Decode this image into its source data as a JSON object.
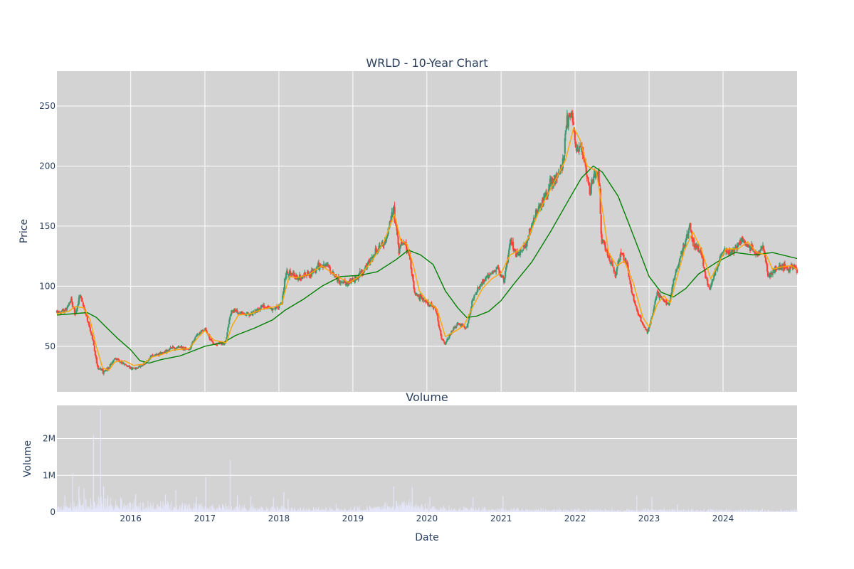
{
  "chart_data": [
    {
      "type": "candlestick",
      "title": "WRLD - 10-Year Chart",
      "ylabel": "Price",
      "ylim": [
        12,
        279
      ],
      "yticks": [
        50,
        100,
        150,
        200,
        250
      ],
      "grid": true,
      "colors": {
        "up": "#3d9970",
        "down": "#ff4136",
        "ma_short": "#ffa500",
        "ma_long": "#008000",
        "plot_bg": "#d3d3d3",
        "grid": "#ffffff"
      },
      "price_path": [
        [
          "2015-01-02",
          78
        ],
        [
          "2015-02-10",
          80
        ],
        [
          "2015-03-15",
          88
        ],
        [
          "2015-04-01",
          76
        ],
        [
          "2015-04-25",
          93
        ],
        [
          "2015-05-20",
          80
        ],
        [
          "2015-06-10",
          66
        ],
        [
          "2015-07-01",
          52
        ],
        [
          "2015-07-20",
          33
        ],
        [
          "2015-08-20",
          29
        ],
        [
          "2015-09-15",
          32
        ],
        [
          "2015-10-15",
          40
        ],
        [
          "2015-11-20",
          36
        ],
        [
          "2016-01-15",
          31
        ],
        [
          "2016-03-01",
          34
        ],
        [
          "2016-04-15",
          42
        ],
        [
          "2016-06-01",
          44
        ],
        [
          "2016-07-15",
          48
        ],
        [
          "2016-09-01",
          49
        ],
        [
          "2016-10-15",
          47
        ],
        [
          "2016-11-15",
          58
        ],
        [
          "2017-01-01",
          64
        ],
        [
          "2017-02-10",
          52
        ],
        [
          "2017-04-01",
          52
        ],
        [
          "2017-04-15",
          55
        ],
        [
          "2017-05-10",
          80
        ],
        [
          "2017-06-15",
          78
        ],
        [
          "2017-08-15",
          76
        ],
        [
          "2017-10-15",
          83
        ],
        [
          "2017-12-01",
          80
        ],
        [
          "2018-01-15",
          86
        ],
        [
          "2018-02-05",
          112
        ],
        [
          "2018-04-01",
          107
        ],
        [
          "2018-06-01",
          110
        ],
        [
          "2018-07-15",
          117
        ],
        [
          "2018-09-01",
          116
        ],
        [
          "2018-10-15",
          105
        ],
        [
          "2018-12-01",
          102
        ],
        [
          "2019-01-15",
          106
        ],
        [
          "2019-03-01",
          114
        ],
        [
          "2019-05-01",
          130
        ],
        [
          "2019-06-15",
          140
        ],
        [
          "2019-07-20",
          165
        ],
        [
          "2019-08-15",
          130
        ],
        [
          "2019-09-15",
          136
        ],
        [
          "2019-10-10",
          123
        ],
        [
          "2019-11-01",
          95
        ],
        [
          "2019-12-15",
          88
        ],
        [
          "2020-02-10",
          82
        ],
        [
          "2020-03-15",
          56
        ],
        [
          "2020-04-01",
          53
        ],
        [
          "2020-05-01",
          62
        ],
        [
          "2020-06-01",
          70
        ],
        [
          "2020-07-15",
          65
        ],
        [
          "2020-08-15",
          90
        ],
        [
          "2020-10-01",
          104
        ],
        [
          "2020-11-15",
          110
        ],
        [
          "2020-12-15",
          115
        ],
        [
          "2021-01-15",
          104
        ],
        [
          "2021-02-15",
          138
        ],
        [
          "2021-03-15",
          128
        ],
        [
          "2021-05-01",
          132
        ],
        [
          "2021-06-15",
          158
        ],
        [
          "2021-08-01",
          170
        ],
        [
          "2021-09-01",
          187
        ],
        [
          "2021-10-01",
          190
        ],
        [
          "2021-11-01",
          202
        ],
        [
          "2021-11-20",
          235
        ],
        [
          "2021-12-15",
          248
        ],
        [
          "2022-01-05",
          210
        ],
        [
          "2022-02-01",
          215
        ],
        [
          "2022-03-15",
          178
        ],
        [
          "2022-04-10",
          195
        ],
        [
          "2022-05-01",
          190
        ],
        [
          "2022-05-10",
          140
        ],
        [
          "2022-06-15",
          125
        ],
        [
          "2022-07-20",
          110
        ],
        [
          "2022-08-15",
          128
        ],
        [
          "2022-09-15",
          118
        ],
        [
          "2022-10-01",
          100
        ],
        [
          "2022-11-01",
          80
        ],
        [
          "2022-12-01",
          68
        ],
        [
          "2022-12-25",
          62
        ],
        [
          "2023-01-15",
          75
        ],
        [
          "2023-02-10",
          95
        ],
        [
          "2023-03-15",
          88
        ],
        [
          "2023-04-10",
          84
        ],
        [
          "2023-05-01",
          105
        ],
        [
          "2023-06-15",
          130
        ],
        [
          "2023-07-20",
          150
        ],
        [
          "2023-08-10",
          136
        ],
        [
          "2023-09-15",
          128
        ],
        [
          "2023-10-10",
          105
        ],
        [
          "2023-10-25",
          98
        ],
        [
          "2023-11-15",
          108
        ],
        [
          "2024-01-01",
          130
        ],
        [
          "2024-02-15",
          128
        ],
        [
          "2024-04-01",
          138
        ],
        [
          "2024-05-15",
          133
        ],
        [
          "2024-06-15",
          126
        ],
        [
          "2024-07-15",
          134
        ],
        [
          "2024-08-10",
          108
        ],
        [
          "2024-09-15",
          115
        ],
        [
          "2024-10-15",
          117
        ],
        [
          "2024-11-15",
          114
        ],
        [
          "2024-12-15",
          118
        ],
        [
          "2024-12-31",
          112
        ]
      ],
      "ma_short": [
        [
          "2015-01-02",
          77
        ],
        [
          "2015-03-01",
          79
        ],
        [
          "2015-04-01",
          83
        ],
        [
          "2015-05-15",
          82
        ],
        [
          "2015-06-15",
          72
        ],
        [
          "2015-07-15",
          50
        ],
        [
          "2015-08-15",
          32
        ],
        [
          "2015-09-15",
          30
        ],
        [
          "2015-10-15",
          37
        ],
        [
          "2015-12-01",
          38
        ],
        [
          "2016-01-15",
          34
        ],
        [
          "2016-03-01",
          35
        ],
        [
          "2016-04-15",
          41
        ],
        [
          "2016-06-01",
          43
        ],
        [
          "2016-08-01",
          47
        ],
        [
          "2016-10-15",
          48
        ],
        [
          "2016-12-01",
          58
        ],
        [
          "2017-01-01",
          63
        ],
        [
          "2017-02-15",
          55
        ],
        [
          "2017-04-15",
          53
        ],
        [
          "2017-05-15",
          67
        ],
        [
          "2017-06-15",
          76
        ],
        [
          "2017-08-15",
          77
        ],
        [
          "2017-10-15",
          81
        ],
        [
          "2017-12-15",
          83
        ],
        [
          "2018-01-15",
          85
        ],
        [
          "2018-02-20",
          108
        ],
        [
          "2018-04-01",
          107
        ],
        [
          "2018-06-01",
          110
        ],
        [
          "2018-08-01",
          117
        ],
        [
          "2018-10-15",
          108
        ],
        [
          "2018-12-15",
          103
        ],
        [
          "2019-02-01",
          108
        ],
        [
          "2019-04-01",
          120
        ],
        [
          "2019-06-01",
          136
        ],
        [
          "2019-07-25",
          160
        ],
        [
          "2019-08-25",
          138
        ],
        [
          "2019-09-25",
          135
        ],
        [
          "2019-10-25",
          118
        ],
        [
          "2019-11-25",
          96
        ],
        [
          "2020-01-01",
          88
        ],
        [
          "2020-02-20",
          81
        ],
        [
          "2020-04-01",
          58
        ],
        [
          "2020-05-15",
          62
        ],
        [
          "2020-07-01",
          67
        ],
        [
          "2020-08-15",
          83
        ],
        [
          "2020-10-01",
          98
        ],
        [
          "2020-11-15",
          106
        ],
        [
          "2021-01-01",
          111
        ],
        [
          "2021-02-15",
          126
        ],
        [
          "2021-04-01",
          130
        ],
        [
          "2021-05-15",
          140
        ],
        [
          "2021-07-01",
          160
        ],
        [
          "2021-08-15",
          175
        ],
        [
          "2021-10-01",
          190
        ],
        [
          "2021-11-15",
          205
        ],
        [
          "2021-12-25",
          232
        ],
        [
          "2022-01-25",
          222
        ],
        [
          "2022-03-01",
          200
        ],
        [
          "2022-04-15",
          196
        ],
        [
          "2022-05-15",
          165
        ],
        [
          "2022-06-15",
          128
        ],
        [
          "2022-07-25",
          117
        ],
        [
          "2022-09-01",
          121
        ],
        [
          "2022-10-15",
          103
        ],
        [
          "2022-12-01",
          74
        ],
        [
          "2023-01-01",
          66
        ],
        [
          "2023-02-10",
          85
        ],
        [
          "2023-03-15",
          92
        ],
        [
          "2023-04-15",
          86
        ],
        [
          "2023-05-15",
          105
        ],
        [
          "2023-06-25",
          130
        ],
        [
          "2023-08-05",
          145
        ],
        [
          "2023-09-15",
          131
        ],
        [
          "2023-11-01",
          106
        ],
        [
          "2023-12-01",
          116
        ],
        [
          "2024-01-15",
          131
        ],
        [
          "2024-03-15",
          131
        ],
        [
          "2024-05-01",
          137
        ],
        [
          "2024-06-15",
          128
        ],
        [
          "2024-08-01",
          126
        ],
        [
          "2024-09-01",
          114
        ],
        [
          "2024-10-15",
          116
        ],
        [
          "2024-12-01",
          117
        ],
        [
          "2024-12-31",
          114
        ]
      ],
      "ma_long": [
        [
          "2015-01-02",
          76
        ],
        [
          "2015-06-01",
          78
        ],
        [
          "2015-07-15",
          74
        ],
        [
          "2015-09-01",
          66
        ],
        [
          "2015-11-01",
          56
        ],
        [
          "2016-01-01",
          47
        ],
        [
          "2016-02-15",
          38
        ],
        [
          "2016-04-01",
          36
        ],
        [
          "2016-06-01",
          39
        ],
        [
          "2016-09-01",
          42
        ],
        [
          "2016-11-01",
          46
        ],
        [
          "2017-01-01",
          50
        ],
        [
          "2017-04-01",
          53
        ],
        [
          "2017-06-01",
          59
        ],
        [
          "2017-09-01",
          65
        ],
        [
          "2017-12-01",
          72
        ],
        [
          "2018-02-01",
          80
        ],
        [
          "2018-05-01",
          89
        ],
        [
          "2018-08-01",
          100
        ],
        [
          "2018-11-01",
          108
        ],
        [
          "2019-02-01",
          109
        ],
        [
          "2019-05-01",
          112
        ],
        [
          "2019-08-01",
          122
        ],
        [
          "2019-10-01",
          130
        ],
        [
          "2019-12-01",
          126
        ],
        [
          "2020-02-01",
          118
        ],
        [
          "2020-04-01",
          96
        ],
        [
          "2020-06-01",
          82
        ],
        [
          "2020-07-15",
          74
        ],
        [
          "2020-09-01",
          75
        ],
        [
          "2020-11-01",
          79
        ],
        [
          "2021-01-01",
          88
        ],
        [
          "2021-03-01",
          101
        ],
        [
          "2021-06-01",
          120
        ],
        [
          "2021-09-01",
          145
        ],
        [
          "2021-12-01",
          172
        ],
        [
          "2022-02-01",
          190
        ],
        [
          "2022-04-01",
          200
        ],
        [
          "2022-05-15",
          195
        ],
        [
          "2022-08-01",
          175
        ],
        [
          "2022-11-01",
          135
        ],
        [
          "2023-01-01",
          108
        ],
        [
          "2023-03-01",
          95
        ],
        [
          "2023-05-01",
          91
        ],
        [
          "2023-07-01",
          98
        ],
        [
          "2023-09-01",
          110
        ],
        [
          "2023-12-01",
          120
        ],
        [
          "2024-03-01",
          128
        ],
        [
          "2024-06-01",
          126
        ],
        [
          "2024-09-01",
          128
        ],
        [
          "2024-12-31",
          123
        ]
      ]
    },
    {
      "type": "bar",
      "title": "Volume",
      "xlabel": "Date",
      "ylabel": "Volume",
      "ylim": [
        0,
        2900000
      ],
      "yticks": [
        0,
        1000000,
        2000000
      ],
      "ytick_labels": [
        "0",
        "1M",
        "2M"
      ],
      "xticks": [
        "2016",
        "2017",
        "2018",
        "2019",
        "2020",
        "2021",
        "2022",
        "2023",
        "2024"
      ],
      "grid": true,
      "bar_color": "#e6e6fa",
      "volume_profile": [
        [
          "2015-01-02",
          100000
        ],
        [
          "2015-06-01",
          150000
        ],
        [
          "2015-09-01",
          200000
        ],
        [
          "2016-01-01",
          150000
        ],
        [
          "2016-06-01",
          120000
        ],
        [
          "2017-01-01",
          100000
        ],
        [
          "2017-06-01",
          90000
        ],
        [
          "2018-01-01",
          80000
        ],
        [
          "2018-06-01",
          60000
        ],
        [
          "2019-01-01",
          60000
        ],
        [
          "2019-07-01",
          120000
        ],
        [
          "2019-10-01",
          140000
        ],
        [
          "2020-01-01",
          90000
        ],
        [
          "2020-06-01",
          60000
        ],
        [
          "2021-01-01",
          50000
        ],
        [
          "2022-01-01",
          40000
        ],
        [
          "2023-01-01",
          40000
        ],
        [
          "2024-01-01",
          35000
        ],
        [
          "2024-12-31",
          35000
        ]
      ],
      "volume_spikes": [
        [
          "2015-02-10",
          450000
        ],
        [
          "2015-03-20",
          1050000
        ],
        [
          "2015-04-20",
          700000
        ],
        [
          "2015-05-15",
          650000
        ],
        [
          "2015-07-01",
          2100000
        ],
        [
          "2015-08-05",
          2800000
        ],
        [
          "2015-08-20",
          700000
        ],
        [
          "2015-09-10",
          450000
        ],
        [
          "2016-01-25",
          500000
        ],
        [
          "2016-06-20",
          480000
        ],
        [
          "2016-08-10",
          600000
        ],
        [
          "2016-11-20",
          420000
        ],
        [
          "2017-01-05",
          950000
        ],
        [
          "2017-05-05",
          1420000
        ],
        [
          "2017-06-10",
          450000
        ],
        [
          "2017-08-15",
          430000
        ],
        [
          "2017-12-05",
          400000
        ],
        [
          "2018-01-25",
          550000
        ],
        [
          "2018-02-15",
          350000
        ],
        [
          "2018-10-10",
          220000
        ],
        [
          "2019-07-20",
          700000
        ],
        [
          "2019-10-20",
          680000
        ],
        [
          "2020-01-15",
          400000
        ],
        [
          "2020-08-15",
          400000
        ],
        [
          "2021-01-10",
          440000
        ],
        [
          "2022-11-01",
          450000
        ],
        [
          "2023-01-15",
          400000
        ],
        [
          "2023-05-20",
          210000
        ]
      ]
    }
  ]
}
